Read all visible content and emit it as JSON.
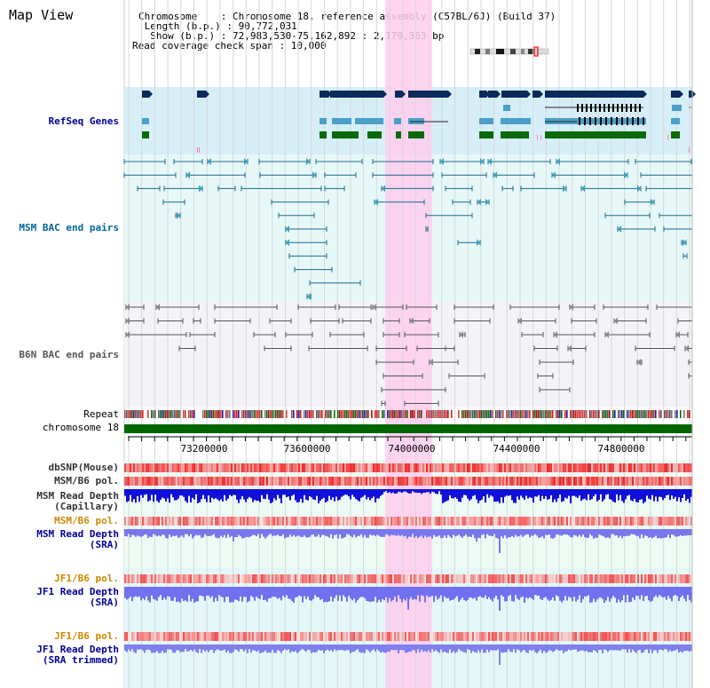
{
  "title": "Map View",
  "info": {
    "chromosome": "Chromosome    : Chromosome 18, reference assembly (C57BL/6J) (Build 37)",
    "length": " Length (b.p.) : 90,772,031",
    "show": "  Show (b.p.) : 72,983,530-75,162,892 : 2,179,363 bp",
    "coverage": "Read coverage check span : 10,000"
  },
  "tracks": {
    "refseq": "RefSeq Genes",
    "msm_bac": "MSM BAC end pairs",
    "b6n_bac": "B6N BAC end pairs",
    "repeat": "Repeat",
    "chromosome": "chromosome 18",
    "dbsnp": "dbSNP(Mouse)",
    "msm_b6_pol_1": "MSM/B6 pol.",
    "msm_depth_cap_1": "MSM Read Depth",
    "msm_depth_cap_2": "(Capillary)",
    "msm_b6_pol_2": "MSM/B6 pol.",
    "msm_depth_sra_1": "MSM Read Depth",
    "msm_depth_sra_2": "(SRA)",
    "jf1_b6_pol_1": "JF1/B6 pol.",
    "jf1_depth_sra_1": "JF1 Read Depth",
    "jf1_depth_sra_2": "(SRA)",
    "jf1_b6_pol_2": "JF1/B6 pol.",
    "jf1_depth_trim_1": "JF1 Read Depth",
    "jf1_depth_trim_2": "(SRA trimmed)"
  },
  "axis": {
    "ticks": [
      "73200000",
      "73600000",
      "74000000",
      "74400000",
      "74800000"
    ]
  },
  "colors": {
    "refseq_label": "#000099",
    "msm_bac_label": "#006699",
    "b6n_bac_label": "#555555",
    "msm_pol_label": "#cc8800",
    "depth_blue": "#2a2ae0",
    "highlight": "#ffc8ee",
    "chrom_green": "#006600"
  }
}
